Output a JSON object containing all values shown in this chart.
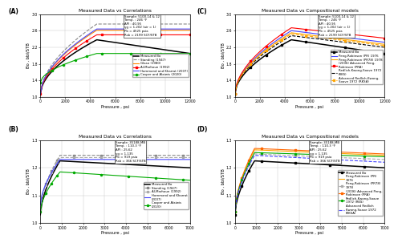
{
  "panel_A": {
    "title": "Measured Data vs Correlations",
    "xlabel": "Pressure , psi",
    "ylabel": "Bo , bbl/STB",
    "xlim": [
      0,
      12000
    ],
    "ylim": [
      1.0,
      3.0
    ],
    "yticks": [
      1.0,
      1.4,
      1.8,
      2.2,
      2.6,
      3.0
    ],
    "xticks": [
      0,
      2000,
      4000,
      6000,
      8000,
      10000,
      12000
    ],
    "pb": 4525,
    "annotation": "Sample: 5100-14 & 12\nTemp. : 246 °F\nAPI : 40.95\nγg = 1.202 (air = 1)\nPb = 4525 psia\nRsb = 2199 SCF/STB",
    "legend_labels": [
      "Measured Bo",
      "Standing (1947)",
      "Glaso (1980)",
      "Al-Marhoun (1992)",
      "Hommand and Kharrat (2007)",
      "Casper and Alaiwis (2020)"
    ],
    "legend_colors": [
      "#000000",
      "#808080",
      "#ff8800",
      "#ff0000",
      "#4444ff",
      "#00aa00"
    ],
    "legend_ls": [
      "-",
      "--",
      "-",
      "-",
      "-",
      "-"
    ],
    "legend_markers": [
      null,
      null,
      null,
      "s",
      null,
      "o"
    ]
  },
  "panel_B": {
    "title": "Measured Data vs Correlations",
    "xlabel": "Pressure , psi",
    "ylabel": "Bo , bbl/STB",
    "xlim": [
      0,
      7000
    ],
    "ylim": [
      1.0,
      1.3
    ],
    "yticks": [
      1.0,
      1.1,
      1.2,
      1.3
    ],
    "xticks": [
      0,
      1000,
      2000,
      3000,
      4000,
      5000,
      6000,
      7000
    ],
    "pb": 919,
    "annotation": "Sample: 35188-MB\nTemp. : 110.3 °F\nAPI : 25.62\nγg = 1.135\nPb = 919 psia\nRsb = 366 SCF/STB",
    "legend_labels": [
      "Measured Bo",
      "Standing (1947)",
      "Al-Marhoun (1992)",
      "Hommand and Kharrat\n(2007)",
      "Casper and Alaiwis\n(2020)"
    ],
    "legend_colors": [
      "#000000",
      "#888888",
      "#aaaaaa",
      "#4444ff",
      "#00aa00"
    ],
    "legend_ls": [
      "-",
      "--",
      "--",
      "-",
      "-"
    ],
    "legend_markers": [
      null,
      "s",
      "s",
      null,
      "o"
    ]
  },
  "panel_C": {
    "title": "Measured Data vs Compositional models",
    "xlabel": "Pressure , psi",
    "ylabel": "Bo , bbl/STB",
    "xlim": [
      0,
      12000
    ],
    "ylim": [
      1.0,
      3.0
    ],
    "yticks": [
      1.0,
      1.4,
      1.8,
      2.2,
      2.6,
      3.0
    ],
    "xticks": [
      0,
      2000,
      4000,
      6000,
      8000,
      10000,
      12000
    ],
    "pb": 4525,
    "annotation": "Sample: 5100-14 & 12\nTemp. : 246 °F\nAPI : 40.95\nγg = 1.202 (air = 1)\nPb = 4525 psia\nRsb = 2199 SCF/STB",
    "legend_labels": [
      "Measured Bo",
      "Peng-Robinson (PR) 1976",
      "Peng-Robinson (PR78) 1978",
      "(2006) Advanced Peng-\nRobinson (PRA)",
      "Redlich-Kwong-Soave 1972\n(RKS)",
      "Advanced Redlich-Kwong-\nSoave 1972 (RKSA)"
    ],
    "legend_colors": [
      "#000000",
      "#4444ff",
      "#ffa500",
      "#ff0000",
      "#000000",
      "#ffa500"
    ],
    "legend_ls": [
      "-",
      "-",
      "-",
      "-",
      "--",
      "--"
    ],
    "legend_markers": [
      "s",
      null,
      null,
      "s",
      null,
      "s"
    ]
  },
  "panel_D": {
    "title": "Measured Data vs Compositional models",
    "xlabel": "Pressure , psi",
    "ylabel": "Bo , bbl/STB",
    "xlim": [
      0,
      7000
    ],
    "ylim": [
      1.0,
      1.3
    ],
    "yticks": [
      1.0,
      1.1,
      1.2,
      1.3
    ],
    "xticks": [
      0,
      1000,
      2000,
      3000,
      4000,
      5000,
      6000,
      7000
    ],
    "pb": 919,
    "annotation": "Sample: 35188-MB\nTemp. : 110.3 °F\nAPI : 25.62\nγg = 1.135\nPb = 919 psia\nRsb = 366 SCF/STB",
    "legend_labels": [
      "Measured Bo",
      "Peng-Robinson (PR)\n1976",
      "Peng-Robinson (PR78)\n1978",
      "(2006) Advanced Peng-\nRobinson (PRA)",
      "Redlich-Kwong-Soave\n1972 (RKS)",
      "Advanced Redlich\nKwong-Soave 1972\n(RKSA)"
    ],
    "legend_colors": [
      "#000000",
      "#ffa500",
      "#aaaaaa",
      "#ff6600",
      "#00aa00",
      "#4444ff"
    ],
    "legend_ls": [
      "-",
      "-",
      "--",
      "-",
      "-",
      "--"
    ],
    "legend_markers": [
      "s",
      null,
      "s",
      "s",
      "o",
      null
    ]
  }
}
